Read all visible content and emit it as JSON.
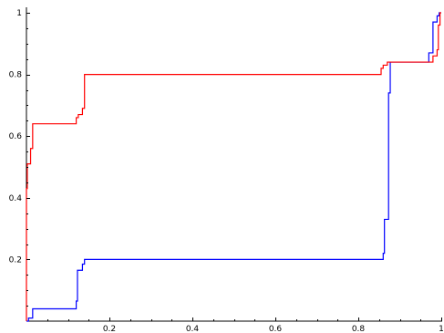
{
  "chart_data": {
    "type": "line",
    "title": "",
    "xlabel": "",
    "ylabel": "",
    "xlim": [
      0,
      1
    ],
    "ylim": [
      0,
      1
    ],
    "grid": false,
    "x_ticks": [
      {
        "value": 0.2,
        "label": "0.2"
      },
      {
        "value": 0.4,
        "label": "0.4"
      },
      {
        "value": 0.6,
        "label": "0.6"
      },
      {
        "value": 0.8,
        "label": "0.8"
      },
      {
        "value": 1.0,
        "label": "1"
      }
    ],
    "y_ticks": [
      {
        "value": 0.2,
        "label": "0.2"
      },
      {
        "value": 0.4,
        "label": "0.4"
      },
      {
        "value": 0.6,
        "label": "0.6"
      },
      {
        "value": 0.8,
        "label": "0.8"
      },
      {
        "value": 1.0,
        "label": "1"
      }
    ],
    "series": [
      {
        "color": "#0000ff",
        "step": true,
        "points": [
          [
            0.0,
            0.0
          ],
          [
            0.005,
            0.0
          ],
          [
            0.005,
            0.01
          ],
          [
            0.015,
            0.01
          ],
          [
            0.015,
            0.04
          ],
          [
            0.12,
            0.04
          ],
          [
            0.12,
            0.065
          ],
          [
            0.123,
            0.065
          ],
          [
            0.123,
            0.165
          ],
          [
            0.135,
            0.165
          ],
          [
            0.135,
            0.185
          ],
          [
            0.14,
            0.185
          ],
          [
            0.14,
            0.2
          ],
          [
            0.86,
            0.2
          ],
          [
            0.86,
            0.22
          ],
          [
            0.863,
            0.22
          ],
          [
            0.863,
            0.33
          ],
          [
            0.873,
            0.33
          ],
          [
            0.873,
            0.74
          ],
          [
            0.877,
            0.74
          ],
          [
            0.877,
            0.84
          ],
          [
            0.97,
            0.84
          ],
          [
            0.97,
            0.87
          ],
          [
            0.98,
            0.87
          ],
          [
            0.98,
            0.97
          ],
          [
            0.99,
            0.97
          ],
          [
            0.99,
            0.99
          ],
          [
            0.995,
            0.99
          ],
          [
            0.995,
            1.0
          ],
          [
            1.0,
            1.0
          ]
        ]
      },
      {
        "color": "#ff0000",
        "step": true,
        "points": [
          [
            0.0,
            0.0
          ],
          [
            0.0,
            0.43
          ],
          [
            0.002,
            0.43
          ],
          [
            0.002,
            0.51
          ],
          [
            0.01,
            0.51
          ],
          [
            0.01,
            0.56
          ],
          [
            0.015,
            0.56
          ],
          [
            0.015,
            0.64
          ],
          [
            0.12,
            0.64
          ],
          [
            0.12,
            0.66
          ],
          [
            0.125,
            0.66
          ],
          [
            0.125,
            0.67
          ],
          [
            0.135,
            0.67
          ],
          [
            0.135,
            0.69
          ],
          [
            0.14,
            0.69
          ],
          [
            0.14,
            0.8
          ],
          [
            0.855,
            0.8
          ],
          [
            0.855,
            0.82
          ],
          [
            0.86,
            0.82
          ],
          [
            0.86,
            0.83
          ],
          [
            0.87,
            0.83
          ],
          [
            0.87,
            0.84
          ],
          [
            0.98,
            0.84
          ],
          [
            0.98,
            0.86
          ],
          [
            0.99,
            0.86
          ],
          [
            0.99,
            0.88
          ],
          [
            0.993,
            0.88
          ],
          [
            0.993,
            0.96
          ],
          [
            0.997,
            0.96
          ],
          [
            0.997,
            1.0
          ],
          [
            1.0,
            1.0
          ]
        ]
      }
    ]
  }
}
